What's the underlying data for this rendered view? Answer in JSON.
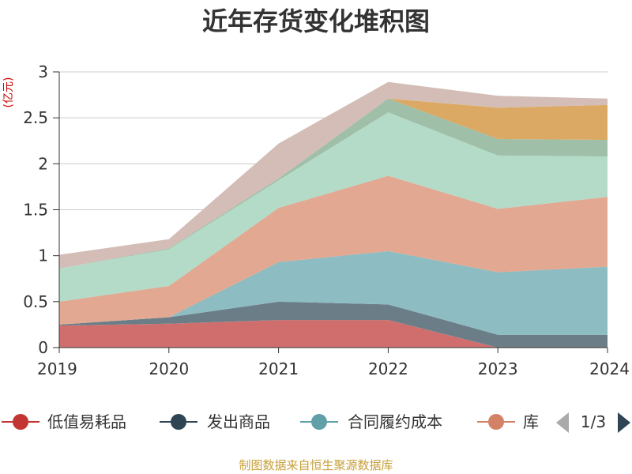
{
  "chart_data": {
    "type": "area",
    "stacked": true,
    "title": "近年存货变化堆积图",
    "ylabel": "(亿元)",
    "x": [
      "2019",
      "2020",
      "2021",
      "2022",
      "2023",
      "2024"
    ],
    "ylim": [
      0,
      3
    ],
    "yticks": [
      "0",
      "0.5",
      "1",
      "1.5",
      "2",
      "2.5",
      "3"
    ],
    "grid": true,
    "legend_position": "bottom",
    "series": [
      {
        "name": "低值易耗品",
        "color": "#d06e6e",
        "values": [
          0.24,
          0.26,
          0.3,
          0.3,
          0.0,
          0.0
        ]
      },
      {
        "name": "发出商品",
        "color": "#6b7e88",
        "values": [
          0.01,
          0.07,
          0.2,
          0.17,
          0.14,
          0.14
        ]
      },
      {
        "name": "合同履约成本",
        "color": "#8dbcc2",
        "values": [
          0.0,
          0.0,
          0.43,
          0.58,
          0.68,
          0.74
        ]
      },
      {
        "name": "库存商品",
        "color": "#e2a891",
        "values": [
          0.25,
          0.34,
          0.59,
          0.82,
          0.69,
          0.76
        ]
      },
      {
        "name": "",
        "color": "#b3dbc8",
        "values": [
          0.36,
          0.4,
          0.3,
          0.69,
          0.58,
          0.44
        ]
      },
      {
        "name": "",
        "color": "#9fbfa8",
        "values": [
          0.0,
          0.01,
          0.02,
          0.15,
          0.18,
          0.18
        ]
      },
      {
        "name": "",
        "color": "#dba963",
        "values": [
          0.0,
          0.0,
          0.0,
          0.0,
          0.34,
          0.38
        ]
      },
      {
        "name": "",
        "color": "#d3bdb6",
        "values": [
          0.15,
          0.1,
          0.38,
          0.18,
          0.13,
          0.07
        ]
      }
    ]
  },
  "legend": {
    "items": [
      "低值易耗品",
      "发出商品",
      "合同履约成本",
      "库"
    ],
    "page_indicator": "1/3"
  },
  "source": "制图数据来自恒生聚源数据库"
}
